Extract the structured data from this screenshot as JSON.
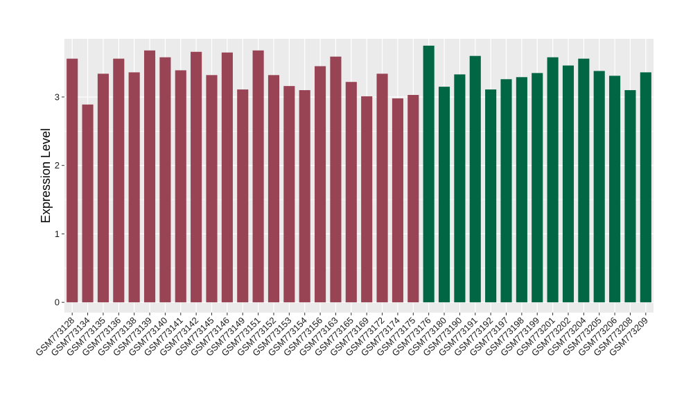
{
  "chart_data": {
    "type": "bar",
    "title": "",
    "xlabel": "",
    "ylabel": "Expression Level",
    "ylim": [
      -0.15,
      3.85
    ],
    "yticks": [
      0,
      1,
      2,
      3
    ],
    "grid": true,
    "legend": "none",
    "colors": {
      "panel_background": "#EBEBEB",
      "grid": "#FFFFFF",
      "group_a": "#994455",
      "group_b": "#006644"
    },
    "categories": [
      "GSM773128",
      "GSM773134",
      "GSM773135",
      "GSM773136",
      "GSM773138",
      "GSM773139",
      "GSM773140",
      "GSM773141",
      "GSM773142",
      "GSM773145",
      "GSM773146",
      "GSM773149",
      "GSM773151",
      "GSM773152",
      "GSM773153",
      "GSM773154",
      "GSM773156",
      "GSM773163",
      "GSM773165",
      "GSM773169",
      "GSM773172",
      "GSM773174",
      "GSM773175",
      "GSM773176",
      "GSM773180",
      "GSM773190",
      "GSM773191",
      "GSM773192",
      "GSM773197",
      "GSM773198",
      "GSM773199",
      "GSM773201",
      "GSM773202",
      "GSM773204",
      "GSM773205",
      "GSM773206",
      "GSM773208",
      "GSM773209"
    ],
    "values": [
      3.56,
      2.89,
      3.34,
      3.56,
      3.36,
      3.68,
      3.58,
      3.39,
      3.66,
      3.32,
      3.65,
      3.11,
      3.68,
      3.32,
      3.16,
      3.1,
      3.45,
      3.59,
      3.22,
      3.01,
      3.34,
      2.98,
      3.03,
      3.75,
      3.15,
      3.33,
      3.6,
      3.11,
      3.26,
      3.29,
      3.35,
      3.58,
      3.46,
      3.56,
      3.38,
      3.31,
      3.1,
      3.36
    ],
    "groups": [
      "a",
      "a",
      "a",
      "a",
      "a",
      "a",
      "a",
      "a",
      "a",
      "a",
      "a",
      "a",
      "a",
      "a",
      "a",
      "a",
      "a",
      "a",
      "a",
      "a",
      "a",
      "a",
      "a",
      "b",
      "b",
      "b",
      "b",
      "b",
      "b",
      "b",
      "b",
      "b",
      "b",
      "b",
      "b",
      "b",
      "b",
      "b"
    ]
  }
}
